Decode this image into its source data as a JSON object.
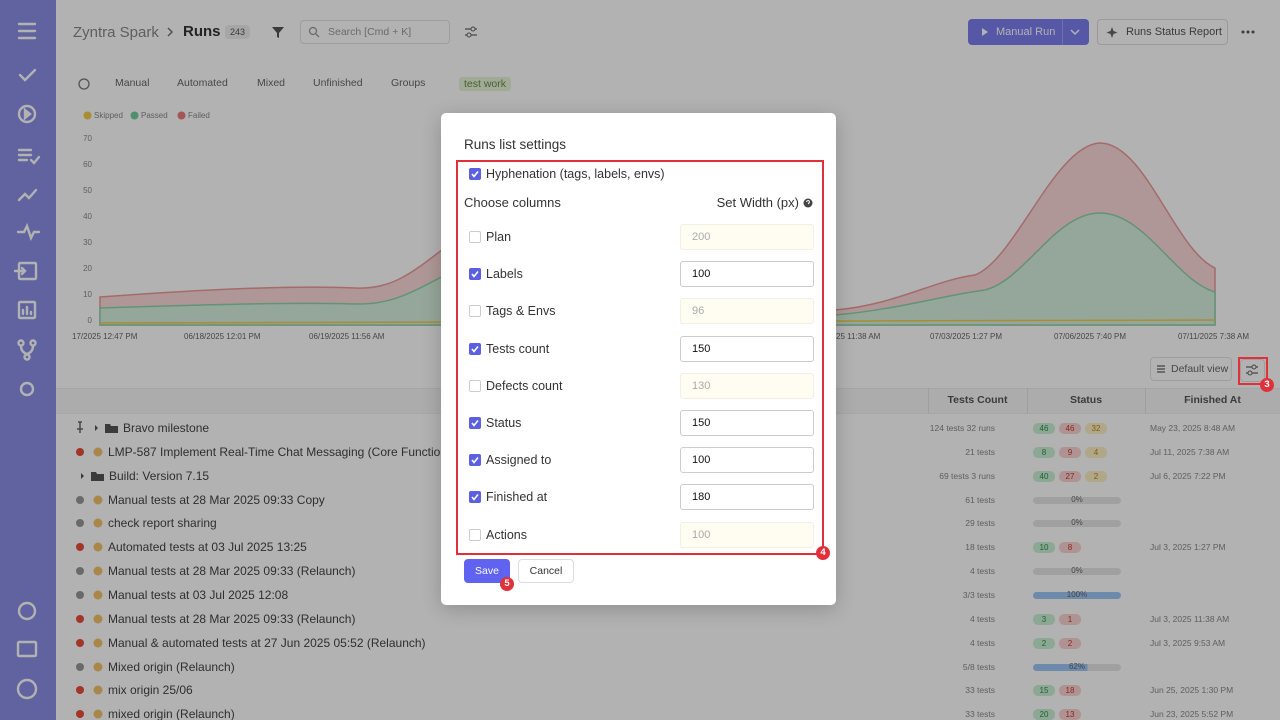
{
  "header": {
    "project": "Zyntra Spark",
    "page": "Runs",
    "count": "243",
    "search_placeholder": "Search [Cmd + K]",
    "manual_run": "Manual Run",
    "status_report": "Runs Status Report"
  },
  "tabs": [
    "Manual",
    "Automated",
    "Mixed",
    "Unfinished",
    "Groups",
    "test work"
  ],
  "background_chart": {
    "legend": [
      "Skipped",
      "Passed",
      "Failed"
    ],
    "yticks": [
      "0",
      "10",
      "20",
      "30",
      "40",
      "50",
      "60",
      "70"
    ],
    "xlabels": [
      "17/2025 12:47 PM",
      "06/18/2025 12:01 PM",
      "06/19/2025 11:56 AM",
      "25 11:38 AM",
      "07/03/2025 1:27 PM",
      "07/06/2025 7:40 PM",
      "07/11/2025 7:38 AM"
    ]
  },
  "table": {
    "view": "Default view",
    "columns": [
      "Tests Count",
      "Status",
      "Finished At"
    ],
    "rows": [
      {
        "name": "Bravo milestone",
        "folder": true,
        "pinned": true,
        "tests": "124 tests 32 runs",
        "badges": [
          46,
          46,
          32
        ],
        "finished": "May 23, 2025 8:48 AM"
      },
      {
        "name": "LMP-587 Implement Real-Time Chat Messaging (Core Functiona",
        "dot": "red",
        "tests": "21 tests",
        "badges": [
          8,
          9,
          4
        ],
        "finished": "Jul 11, 2025 7:38 AM"
      },
      {
        "name": "Build: Version 7.15",
        "folder": true,
        "tests": "69 tests 3 runs",
        "badges": [
          40,
          27,
          2
        ],
        "finished": "Jul 6, 2025 7:22 PM"
      },
      {
        "name": "Manual tests at 28 Mar 2025 09:33 Copy",
        "dot": "gray",
        "tests": "61 tests",
        "progress": "0%"
      },
      {
        "name": "check report sharing",
        "dot": "gray",
        "tests": "29 tests",
        "progress": "0%"
      },
      {
        "name": "Automated tests at 03 Jul 2025 13:25",
        "dot": "red",
        "tests": "18 tests",
        "badges": [
          10,
          8
        ],
        "finished": "Jul 3, 2025 1:27 PM"
      },
      {
        "name": "Manual tests at 28 Mar 2025 09:33 (Relaunch)",
        "dot": "gray",
        "tests": "4 tests",
        "progress": "0%"
      },
      {
        "name": "Manual tests at 03 Jul 2025 12:08",
        "dot": "gray",
        "tests": "3/3 tests",
        "progress": "100%"
      },
      {
        "name": "Manual tests at 28 Mar 2025 09:33 (Relaunch)",
        "dot": "red",
        "tests": "4 tests",
        "badges": [
          3,
          1
        ],
        "finished": "Jul 3, 2025 11:38 AM"
      },
      {
        "name": "Manual & automated tests at 27 Jun 2025 05:52 (Relaunch)",
        "dot": "red",
        "tests": "4 tests",
        "badges": [
          2,
          2
        ],
        "finished": "Jul 3, 2025 9:53 AM"
      },
      {
        "name": "Mixed origin (Relaunch)",
        "dot": "gray",
        "tests": "5/8 tests",
        "progress": "62%"
      },
      {
        "name": "mix origin 25/06",
        "dot": "red",
        "tests": "33 tests",
        "badges": [
          15,
          18
        ],
        "finished": "Jun 25, 2025 1:30 PM"
      },
      {
        "name": "mixed origin (Relaunch)",
        "dot": "red",
        "tests": "33 tests",
        "badges": [
          20,
          13
        ],
        "finished": "Jun 23, 2025 5:52 PM"
      }
    ]
  },
  "modal": {
    "title": "Runs list settings",
    "hyphenation": {
      "label": "Hyphenation (tags, labels, envs)",
      "checked": true
    },
    "choose_columns": "Choose columns",
    "set_width": "Set Width (px)",
    "columns": [
      {
        "label": "Plan",
        "checked": false,
        "width": 200
      },
      {
        "label": "Labels",
        "checked": true,
        "width": 100
      },
      {
        "label": "Tags & Envs",
        "checked": false,
        "width": 96
      },
      {
        "label": "Tests count",
        "checked": true,
        "width": 150
      },
      {
        "label": "Defects count",
        "checked": false,
        "width": 130
      },
      {
        "label": "Status",
        "checked": true,
        "width": 150
      },
      {
        "label": "Assigned to",
        "checked": true,
        "width": 100
      },
      {
        "label": "Finished at",
        "checked": true,
        "width": 180
      },
      {
        "label": "Actions",
        "checked": false,
        "width": 100
      }
    ],
    "save": "Save",
    "cancel": "Cancel"
  },
  "annotations": [
    "3",
    "4",
    "5"
  ]
}
